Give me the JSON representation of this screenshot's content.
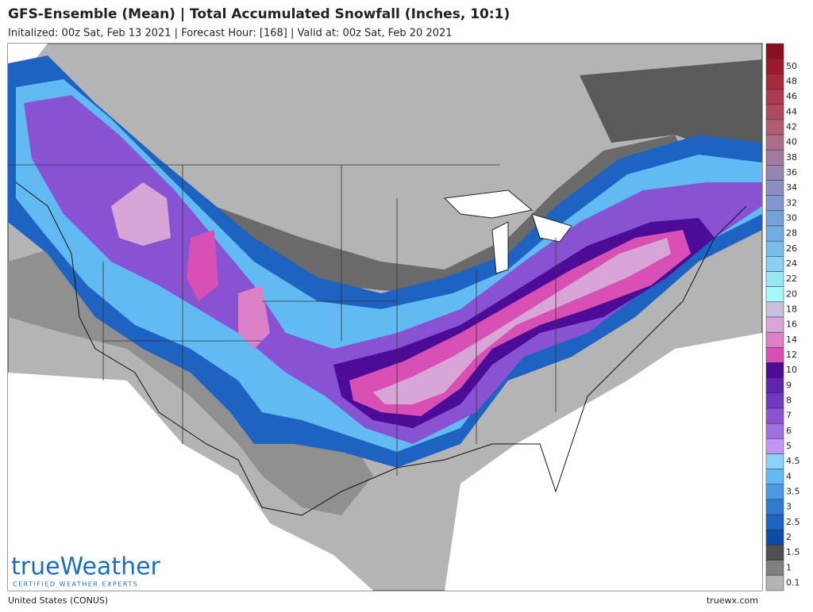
{
  "header": {
    "title": "GFS-Ensemble (Mean) | Total Accumulated Snowfall (Inches, 10:1)",
    "subtitle": "Initalized: 00z Sat, Feb 13 2021 | Forecast Hour: [168] | Valid at: 00z Sat, Feb 20 2021"
  },
  "legend": {
    "top_color": "#8a1020",
    "entries": [
      {
        "label": "50",
        "color": "#9c1a2e"
      },
      {
        "label": "48",
        "color": "#a52a3c"
      },
      {
        "label": "46",
        "color": "#aa3a4c"
      },
      {
        "label": "44",
        "color": "#ae4a5e"
      },
      {
        "label": "42",
        "color": "#b05c72"
      },
      {
        "label": "40",
        "color": "#ad6c88"
      },
      {
        "label": "38",
        "color": "#a27a9e"
      },
      {
        "label": "36",
        "color": "#9684b2"
      },
      {
        "label": "34",
        "color": "#8a8ec2"
      },
      {
        "label": "32",
        "color": "#8098d0"
      },
      {
        "label": "30",
        "color": "#76a2dc"
      },
      {
        "label": "28",
        "color": "#6eaee4"
      },
      {
        "label": "26",
        "color": "#78bcec"
      },
      {
        "label": "24",
        "color": "#88d0f2"
      },
      {
        "label": "22",
        "color": "#96e6f6"
      },
      {
        "label": "20",
        "color": "#a4fafa"
      },
      {
        "label": "18",
        "color": "#c8c0dc"
      },
      {
        "label": "16",
        "color": "#d8a6d6"
      },
      {
        "label": "14",
        "color": "#dc80c8"
      },
      {
        "label": "12",
        "color": "#d850b4"
      },
      {
        "label": "10",
        "color": "#4c0c98"
      },
      {
        "label": "9",
        "color": "#6024b0"
      },
      {
        "label": "8",
        "color": "#7238c2"
      },
      {
        "label": "7",
        "color": "#8852d2"
      },
      {
        "label": "6",
        "color": "#a070e0"
      },
      {
        "label": "5",
        "color": "#c494f4"
      },
      {
        "label": "4.5",
        "color": "#8ad4fa"
      },
      {
        "label": "4",
        "color": "#62baf2"
      },
      {
        "label": "3.5",
        "color": "#4a9ae2"
      },
      {
        "label": "3",
        "color": "#307ad2"
      },
      {
        "label": "2.5",
        "color": "#1e62c2"
      },
      {
        "label": "2",
        "color": "#0e4aa8"
      },
      {
        "label": "1.5",
        "color": "#505050"
      },
      {
        "label": "1",
        "color": "#808080"
      },
      {
        "label": "0.1",
        "color": "#b4b4b4"
      }
    ]
  },
  "logo": {
    "name": "trueWeather",
    "tagline": "CERTIFIED WEATHER EXPERTS"
  },
  "footer": {
    "region": "United States (CONUS)",
    "site": "truewx.com"
  }
}
